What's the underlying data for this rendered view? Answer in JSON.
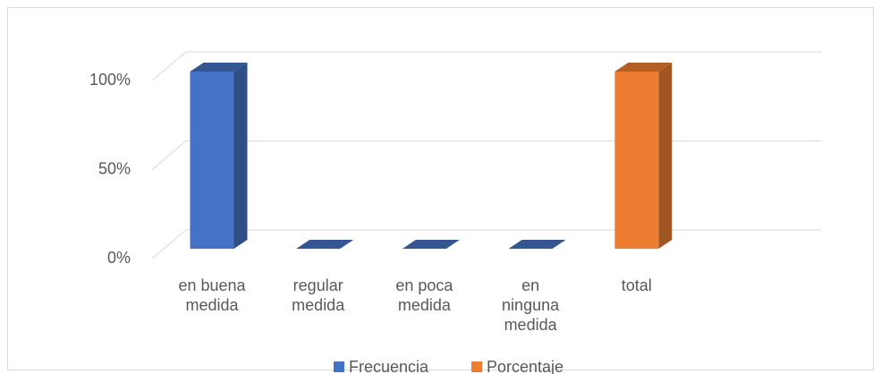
{
  "chart_data": {
    "type": "bar3d",
    "categories": [
      "en buena medida",
      "regular medida",
      "en poca medida",
      "en ninguna medida",
      "total"
    ],
    "series": [
      {
        "name": "Frecuencia",
        "color": "#4472c4",
        "values": [
          100,
          0,
          0,
          0,
          null
        ]
      },
      {
        "name": "Porcentaje",
        "color": "#ed7d31",
        "values": [
          null,
          null,
          null,
          null,
          100
        ]
      }
    ],
    "ylim": [
      0,
      100
    ],
    "yticks": [
      {
        "value": 0,
        "label": "0%"
      },
      {
        "value": 50,
        "label": "50%"
      },
      {
        "value": 100,
        "label": "100%"
      }
    ],
    "grid": true,
    "legend": "bottom"
  }
}
